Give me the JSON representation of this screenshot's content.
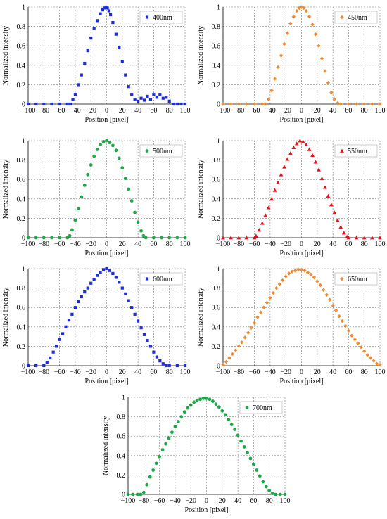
{
  "chart_data": [
    {
      "type": "scatter",
      "xlabel": "Position [pixel]",
      "ylabel": "Normalized intensity",
      "xlim": [
        -100,
        100
      ],
      "ylim": [
        0,
        1
      ],
      "xticks": [
        "−100",
        "−80",
        "−60",
        "−40",
        "−20",
        "0",
        "20",
        "40",
        "60",
        "80",
        "100"
      ],
      "yticks": [
        "0",
        "0.2",
        "0.4",
        "0.6",
        "0.8",
        "1"
      ],
      "grid": true,
      "legend_position": "top-right",
      "series": [
        {
          "name": "400nm",
          "color": "#1f2ed6",
          "marker": "square",
          "x": [
            -100,
            -90,
            -80,
            -70,
            -60,
            -50,
            -46,
            -43,
            -40,
            -36,
            -32,
            -28,
            -24,
            -20,
            -16,
            -12,
            -8,
            -5,
            -3,
            -1,
            1,
            3,
            5,
            8,
            12,
            16,
            20,
            24,
            28,
            32,
            36,
            40,
            44,
            48,
            52,
            56,
            60,
            64,
            68,
            72,
            76,
            80,
            85,
            90,
            95,
            100
          ],
          "y": [
            0,
            0,
            0,
            0,
            0,
            0,
            0,
            0.05,
            0.1,
            0.2,
            0.3,
            0.42,
            0.55,
            0.68,
            0.78,
            0.86,
            0.93,
            0.97,
            0.99,
            1,
            0.99,
            0.96,
            0.92,
            0.84,
            0.72,
            0.58,
            0.44,
            0.3,
            0.18,
            0.1,
            0.05,
            0.03,
            0.06,
            0.04,
            0.08,
            0.05,
            0.1,
            0.07,
            0.1,
            0.06,
            0.07,
            0.03,
            0,
            0,
            0,
            0
          ]
        }
      ]
    },
    {
      "type": "scatter",
      "xlabel": "Position [pixel]",
      "ylabel": "Normalized intensity",
      "xlim": [
        -100,
        100
      ],
      "ylim": [
        0,
        1
      ],
      "xticks": [
        "−100",
        "−80",
        "−60",
        "−40",
        "−20",
        "0",
        "20",
        "40",
        "60",
        "80",
        "100"
      ],
      "yticks": [
        "0",
        "0.2",
        "0.4",
        "0.6",
        "0.8",
        "1"
      ],
      "grid": true,
      "legend_position": "top-right",
      "series": [
        {
          "name": "450nm",
          "color": "#ef8a2f",
          "marker": "diamond",
          "x": [
            -100,
            -90,
            -80,
            -70,
            -60,
            -50,
            -46,
            -42,
            -38,
            -34,
            -30,
            -26,
            -22,
            -18,
            -14,
            -10,
            -6,
            -3,
            0,
            3,
            6,
            10,
            14,
            18,
            22,
            26,
            30,
            34,
            38,
            42,
            46,
            50,
            60,
            70,
            80,
            90,
            100
          ],
          "y": [
            0,
            0,
            0,
            0,
            0,
            0,
            0,
            0.05,
            0.14,
            0.26,
            0.38,
            0.5,
            0.62,
            0.73,
            0.83,
            0.9,
            0.96,
            0.99,
            1,
            0.99,
            0.96,
            0.9,
            0.82,
            0.72,
            0.6,
            0.47,
            0.34,
            0.22,
            0.12,
            0.05,
            0.01,
            0,
            0,
            0,
            0,
            0,
            0
          ]
        }
      ]
    },
    {
      "type": "scatter",
      "xlabel": "Position [pixel]",
      "ylabel": "Normalized intensity",
      "xlim": [
        -100,
        100
      ],
      "ylim": [
        0,
        1
      ],
      "xticks": [
        "−100",
        "−80",
        "−60",
        "−40",
        "−20",
        "0",
        "20",
        "40",
        "60",
        "80",
        "100"
      ],
      "yticks": [
        "0",
        "0.2",
        "0.4",
        "0.6",
        "0.8",
        "1"
      ],
      "grid": true,
      "legend_position": "top-right",
      "series": [
        {
          "name": "500nm",
          "color": "#1fa84a",
          "marker": "circle",
          "x": [
            -100,
            -90,
            -80,
            -70,
            -60,
            -50,
            -47,
            -44,
            -40,
            -36,
            -32,
            -28,
            -24,
            -20,
            -16,
            -12,
            -8,
            -4,
            0,
            4,
            8,
            12,
            16,
            20,
            24,
            28,
            32,
            36,
            40,
            44,
            47,
            50,
            60,
            70,
            80,
            90,
            100
          ],
          "y": [
            0,
            0,
            0,
            0,
            0,
            0,
            0.02,
            0.08,
            0.18,
            0.3,
            0.42,
            0.54,
            0.65,
            0.75,
            0.84,
            0.91,
            0.96,
            0.99,
            1,
            0.98,
            0.95,
            0.9,
            0.82,
            0.72,
            0.61,
            0.5,
            0.38,
            0.26,
            0.16,
            0.07,
            0.02,
            0,
            0,
            0,
            0,
            0,
            0
          ]
        }
      ]
    },
    {
      "type": "scatter",
      "xlabel": "Position [pixel]",
      "ylabel": "Normalized intensity",
      "xlim": [
        -100,
        100
      ],
      "ylim": [
        0,
        1
      ],
      "xticks": [
        "−100",
        "−80",
        "−60",
        "−40",
        "−20",
        "0",
        "20",
        "40",
        "60",
        "80",
        "100"
      ],
      "yticks": [
        "0",
        "0.2",
        "0.4",
        "0.6",
        "0.8",
        "1"
      ],
      "grid": true,
      "legend_position": "top-right",
      "series": [
        {
          "name": "550nm",
          "color": "#e8141c",
          "marker": "triangle",
          "x": [
            -100,
            -90,
            -80,
            -70,
            -60,
            -58,
            -54,
            -50,
            -46,
            -42,
            -38,
            -34,
            -30,
            -26,
            -22,
            -18,
            -14,
            -10,
            -6,
            -2,
            2,
            6,
            10,
            14,
            18,
            22,
            26,
            30,
            34,
            38,
            42,
            46,
            50,
            54,
            58,
            60,
            70,
            80,
            90,
            100
          ],
          "y": [
            0,
            0,
            0,
            0,
            0,
            0.02,
            0.08,
            0.15,
            0.23,
            0.31,
            0.4,
            0.49,
            0.57,
            0.65,
            0.73,
            0.81,
            0.87,
            0.93,
            0.97,
            1,
            0.99,
            0.96,
            0.91,
            0.85,
            0.78,
            0.7,
            0.61,
            0.52,
            0.43,
            0.34,
            0.26,
            0.18,
            0.11,
            0.05,
            0.01,
            0,
            0,
            0,
            0,
            0
          ]
        }
      ]
    },
    {
      "type": "scatter",
      "xlabel": "Position [pixel]",
      "ylabel": "Normalized intensity",
      "xlim": [
        -100,
        100
      ],
      "ylim": [
        0,
        1
      ],
      "xticks": [
        "−100",
        "−80",
        "−60",
        "−40",
        "−20",
        "0",
        "20",
        "40",
        "60",
        "80",
        "100"
      ],
      "yticks": [
        "0",
        "0.2",
        "0.4",
        "0.6",
        "0.8",
        "1"
      ],
      "grid": true,
      "legend_position": "top-right",
      "series": [
        {
          "name": "600nm",
          "color": "#1f2ed6",
          "marker": "square",
          "x": [
            -100,
            -90,
            -80,
            -76,
            -72,
            -68,
            -64,
            -60,
            -56,
            -52,
            -48,
            -44,
            -40,
            -36,
            -32,
            -28,
            -24,
            -20,
            -16,
            -12,
            -8,
            -4,
            0,
            4,
            8,
            12,
            16,
            20,
            24,
            28,
            32,
            36,
            40,
            44,
            48,
            52,
            56,
            60,
            64,
            68,
            72,
            76,
            80,
            90,
            100
          ],
          "y": [
            0,
            0,
            0,
            0.03,
            0.08,
            0.14,
            0.2,
            0.27,
            0.33,
            0.4,
            0.47,
            0.53,
            0.6,
            0.66,
            0.71,
            0.76,
            0.8,
            0.85,
            0.89,
            0.93,
            0.96,
            0.99,
            1,
            0.98,
            0.95,
            0.91,
            0.86,
            0.8,
            0.74,
            0.67,
            0.6,
            0.53,
            0.46,
            0.39,
            0.32,
            0.26,
            0.2,
            0.14,
            0.09,
            0.05,
            0.02,
            0,
            0,
            0,
            0
          ]
        }
      ]
    },
    {
      "type": "scatter",
      "xlabel": "Position [pixel]",
      "ylabel": "Normalized intensity",
      "xlim": [
        -100,
        100
      ],
      "ylim": [
        0,
        1
      ],
      "xticks": [
        "−100",
        "−80",
        "−60",
        "−40",
        "−20",
        "0",
        "20",
        "40",
        "60",
        "80",
        "100"
      ],
      "yticks": [
        "0",
        "0.2",
        "0.4",
        "0.6",
        "0.8",
        "1"
      ],
      "grid": true,
      "legend_position": "top-right",
      "series": [
        {
          "name": "650nm",
          "color": "#ef8a2f",
          "marker": "diamond",
          "x": [
            -100,
            -96,
            -92,
            -88,
            -84,
            -80,
            -76,
            -72,
            -68,
            -64,
            -60,
            -56,
            -52,
            -48,
            -44,
            -40,
            -36,
            -32,
            -28,
            -24,
            -20,
            -16,
            -12,
            -8,
            -4,
            0,
            4,
            8,
            12,
            16,
            20,
            24,
            28,
            32,
            36,
            40,
            44,
            48,
            52,
            56,
            60,
            64,
            68,
            72,
            76,
            80,
            84,
            88,
            92,
            96,
            100
          ],
          "y": [
            0.01,
            0.04,
            0.08,
            0.12,
            0.16,
            0.2,
            0.24,
            0.29,
            0.34,
            0.39,
            0.44,
            0.5,
            0.55,
            0.6,
            0.65,
            0.7,
            0.75,
            0.8,
            0.84,
            0.88,
            0.92,
            0.95,
            0.97,
            0.98,
            0.99,
            0.99,
            0.98,
            0.96,
            0.94,
            0.91,
            0.87,
            0.83,
            0.78,
            0.73,
            0.68,
            0.62,
            0.57,
            0.51,
            0.46,
            0.41,
            0.36,
            0.31,
            0.27,
            0.23,
            0.19,
            0.15,
            0.11,
            0.08,
            0.05,
            0.02,
            0.01
          ]
        }
      ]
    },
    {
      "type": "scatter",
      "xlabel": "Position [pixel]",
      "ylabel": "Normalized intensity",
      "xlim": [
        -100,
        100
      ],
      "ylim": [
        0,
        1
      ],
      "xticks": [
        "−100",
        "−80",
        "−60",
        "−40",
        "−20",
        "0",
        "20",
        "40",
        "60",
        "80",
        "100"
      ],
      "yticks": [
        "0",
        "0.2",
        "0.4",
        "0.6",
        "0.8",
        "1"
      ],
      "grid": true,
      "legend_position": "top-right",
      "series": [
        {
          "name": "700nm",
          "color": "#1fa84a",
          "marker": "circle",
          "x": [
            -100,
            -94,
            -88,
            -84,
            -80,
            -76,
            -72,
            -68,
            -64,
            -60,
            -56,
            -52,
            -48,
            -44,
            -40,
            -36,
            -32,
            -28,
            -24,
            -20,
            -16,
            -12,
            -8,
            -4,
            0,
            4,
            8,
            12,
            16,
            20,
            24,
            28,
            32,
            36,
            40,
            44,
            48,
            52,
            56,
            60,
            64,
            68,
            72,
            76,
            80,
            84,
            88,
            94,
            100
          ],
          "y": [
            0,
            0,
            0,
            0,
            0.02,
            0.1,
            0.18,
            0.25,
            0.32,
            0.39,
            0.46,
            0.52,
            0.58,
            0.64,
            0.7,
            0.75,
            0.8,
            0.85,
            0.89,
            0.92,
            0.95,
            0.97,
            0.98,
            0.99,
            0.99,
            0.98,
            0.96,
            0.93,
            0.9,
            0.86,
            0.82,
            0.77,
            0.72,
            0.67,
            0.61,
            0.55,
            0.49,
            0.43,
            0.37,
            0.31,
            0.25,
            0.19,
            0.13,
            0.08,
            0.04,
            0.01,
            0,
            0,
            0
          ]
        }
      ]
    }
  ]
}
